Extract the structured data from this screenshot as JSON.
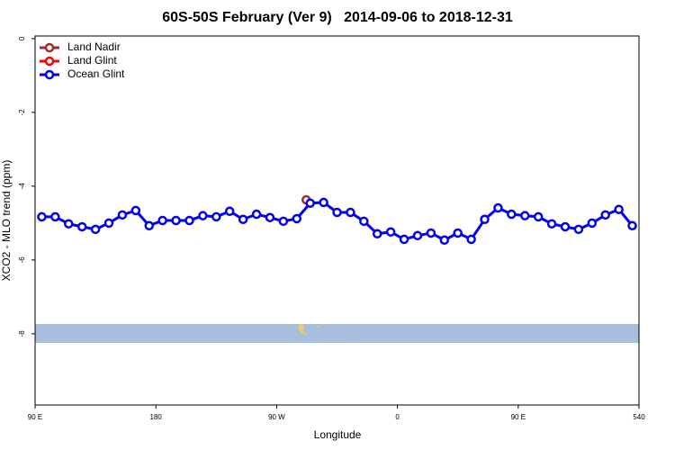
{
  "chart_data": {
    "type": "line",
    "title": "60S-50S February (Ver 9)   2014-09-06 to 2018-12-31",
    "xlabel": "Longitude",
    "ylabel": "XCO2 - MLO trend (ppm)",
    "xlim": [
      90,
      540
    ],
    "ylim": [
      -9.93,
      0.07
    ],
    "xticks": [
      {
        "value": 90,
        "label": "90 E"
      },
      180,
      {
        "value": 270,
        "label": "90 W"
      },
      {
        "value": 360,
        "label": "0"
      },
      {
        "value": 450,
        "label": "90 E"
      },
      540
    ],
    "yticks": [
      0,
      -2,
      -4,
      -6,
      -8
    ],
    "legend": "top-left",
    "series": [
      {
        "name": "Land Nadir",
        "color": "#a52a2a",
        "x": [
          292
        ],
        "values": [
          -4.37
        ]
      },
      {
        "name": "Land Glint",
        "color": "#ff0000",
        "x": [],
        "values": []
      },
      {
        "name": "Ocean Glint",
        "color": "#0000ee",
        "x": [
          95,
          105,
          115,
          125,
          135,
          145,
          155,
          165,
          175,
          185,
          195,
          205,
          215,
          225,
          235,
          245,
          255,
          265,
          275,
          285,
          295,
          305,
          315,
          325,
          335,
          345,
          355,
          365,
          375,
          385,
          395,
          405,
          415,
          425,
          435,
          445,
          455,
          465,
          475,
          485,
          495,
          505,
          515,
          525,
          535
        ],
        "values": [
          -4.83,
          -4.83,
          -5.02,
          -5.1,
          -5.17,
          -5.0,
          -4.78,
          -4.66,
          -5.07,
          -4.93,
          -4.93,
          -4.93,
          -4.8,
          -4.83,
          -4.68,
          -4.9,
          -4.76,
          -4.85,
          -4.95,
          -4.88,
          -4.46,
          -4.44,
          -4.71,
          -4.71,
          -4.95,
          -5.29,
          -5.24,
          -5.44,
          -5.34,
          -5.27,
          -5.46,
          -5.27,
          -5.44,
          -4.9,
          -4.59,
          -4.76,
          -4.8,
          -4.83,
          -5.02,
          -5.1,
          -5.17,
          -5.0,
          -4.78,
          -4.63,
          -5.07
        ]
      }
    ]
  }
}
